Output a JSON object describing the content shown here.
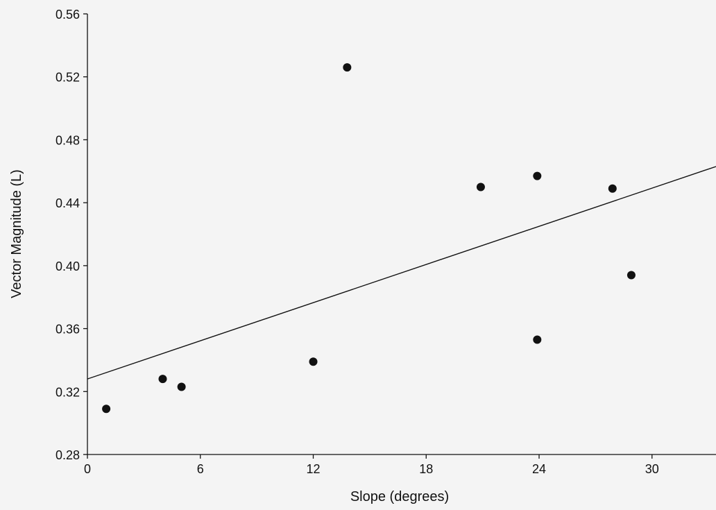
{
  "chart_data": {
    "type": "scatter",
    "title": "",
    "xlabel": "Slope (degrees)",
    "ylabel": "Vector Magnitude (L)",
    "xlim": [
      0,
      33.4
    ],
    "ylim": [
      0.28,
      0.56
    ],
    "xticks": [
      "0",
      "6",
      "12",
      "18",
      "24",
      "30"
    ],
    "yticks": [
      "0.28",
      "0.32",
      "0.36",
      "0.40",
      "0.44",
      "0.48",
      "0.52",
      "0.56"
    ],
    "grid": false,
    "series": [
      {
        "points": [
          {
            "x": 1.0,
            "y": 0.309
          },
          {
            "x": 4.0,
            "y": 0.328
          },
          {
            "x": 5.0,
            "y": 0.323
          },
          {
            "x": 12.0,
            "y": 0.339
          },
          {
            "x": 13.8,
            "y": 0.526
          },
          {
            "x": 20.9,
            "y": 0.45
          },
          {
            "x": 23.9,
            "y": 0.457
          },
          {
            "x": 23.9,
            "y": 0.353
          },
          {
            "x": 27.9,
            "y": 0.449
          },
          {
            "x": 28.9,
            "y": 0.394
          }
        ]
      }
    ],
    "trendline": {
      "x": [
        0,
        33.4
      ],
      "y": [
        0.328,
        0.463
      ]
    }
  }
}
